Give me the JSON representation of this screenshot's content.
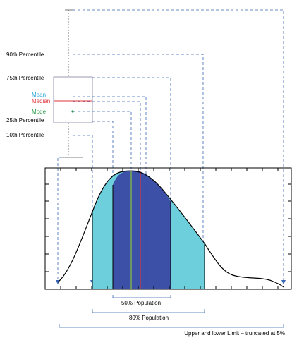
{
  "labels": {
    "p90": "90th Percentile",
    "p75": "75th Percentile",
    "mean": "Mean",
    "median": "Median",
    "mode": "Mode",
    "p25": "25th Percentile",
    "p10": "10th Percentile",
    "pop50": "50% Population",
    "pop80": "80% Population",
    "limits": "Upper and lower Limit – truncated at 5%"
  },
  "colors": {
    "outer_band": "#6ecfdc",
    "inner_band": "#3b50a6",
    "leader": "#3a68b4",
    "box": "#7f7f9f",
    "mean": "#2ea7d8",
    "median": "#e0343c",
    "mode": "#2e9a4a",
    "mean_line": "#8fc43a",
    "axis": "#000000"
  }
}
